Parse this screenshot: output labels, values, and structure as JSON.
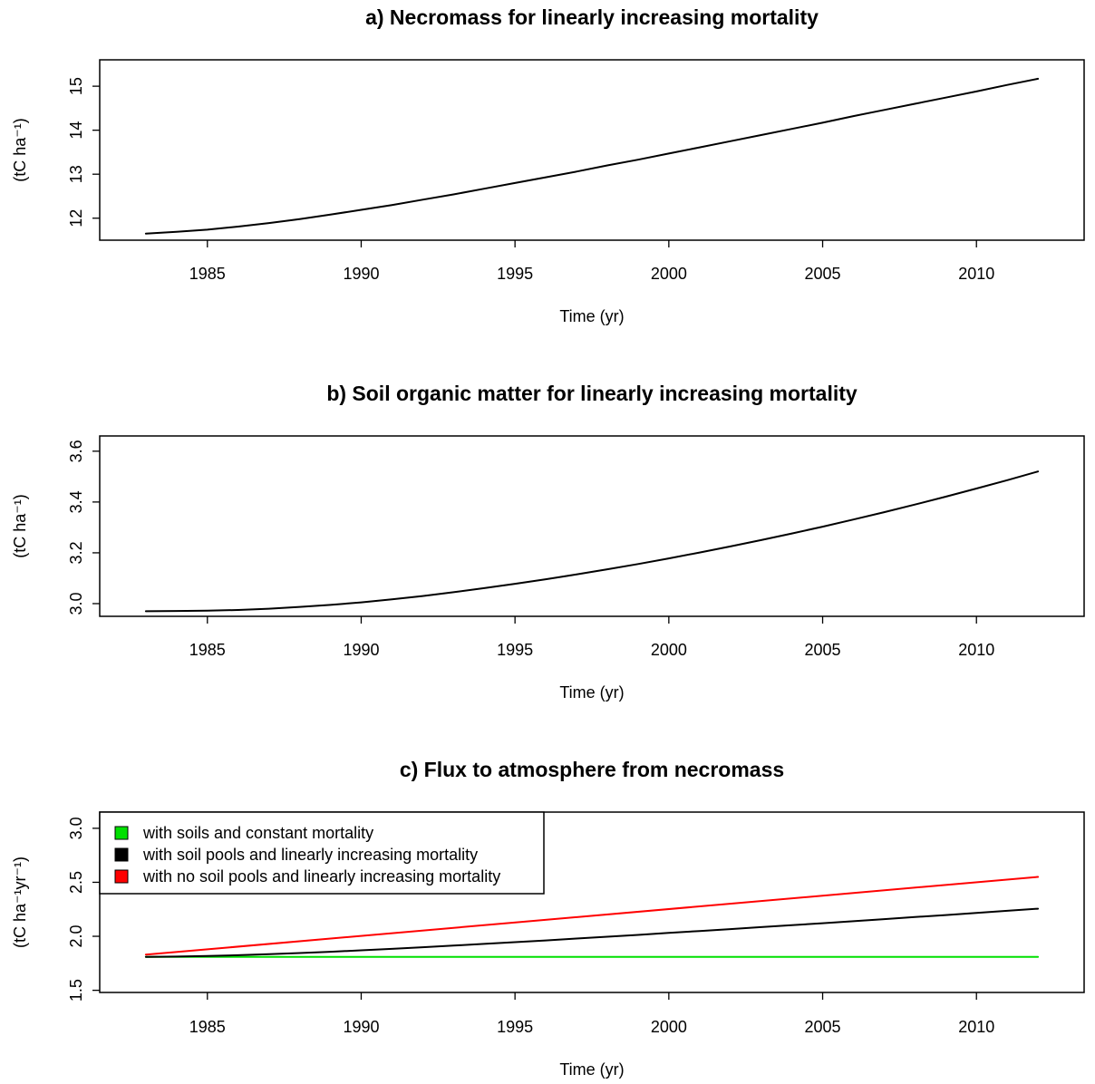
{
  "chart_data": [
    {
      "type": "line",
      "title": "a) Necromass for linearly increasing mortality",
      "xlabel": "Time (yr)",
      "ylabel": "(tC ha⁻¹)",
      "xlim": [
        1981.5,
        2013.5
      ],
      "ylim": [
        11.5,
        15.6
      ],
      "x_ticks": [
        1985,
        1990,
        1995,
        2000,
        2005,
        2010
      ],
      "x_tick_labels": [
        "1985",
        "1990",
        "1995",
        "2000",
        "2005",
        "2010"
      ],
      "y_ticks": [
        12,
        13,
        14,
        15
      ],
      "y_tick_labels": [
        "12",
        "13",
        "14",
        "15"
      ],
      "grid": false,
      "series": [
        {
          "color": "#000000",
          "x": [
            1983,
            1984,
            1985,
            1986,
            1987,
            1988,
            1989,
            1990,
            1991,
            1992,
            1993,
            1994,
            1995,
            1996,
            1997,
            1998,
            1999,
            2000,
            2001,
            2002,
            2003,
            2004,
            2005,
            2006,
            2007,
            2008,
            2009,
            2010,
            2011,
            2012
          ],
          "values": [
            11.65,
            11.69,
            11.74,
            11.81,
            11.89,
            11.98,
            12.08,
            12.19,
            12.3,
            12.42,
            12.54,
            12.67,
            12.8,
            12.93,
            13.06,
            13.2,
            13.33,
            13.47,
            13.61,
            13.75,
            13.89,
            14.03,
            14.17,
            14.32,
            14.46,
            14.6,
            14.74,
            14.88,
            15.03,
            15.17
          ]
        }
      ]
    },
    {
      "type": "line",
      "title": "b) Soil organic matter for linearly increasing mortality",
      "xlabel": "Time (yr)",
      "ylabel": "(tC ha⁻¹)",
      "xlim": [
        1981.5,
        2013.5
      ],
      "ylim": [
        2.95,
        3.66
      ],
      "x_ticks": [
        1985,
        1990,
        1995,
        2000,
        2005,
        2010
      ],
      "x_tick_labels": [
        "1985",
        "1990",
        "1995",
        "2000",
        "2005",
        "2010"
      ],
      "y_ticks": [
        3.0,
        3.2,
        3.4,
        3.6
      ],
      "y_tick_labels": [
        "3.0",
        "3.2",
        "3.4",
        "3.6"
      ],
      "grid": false,
      "series": [
        {
          "color": "#000000",
          "x": [
            1983,
            1984,
            1985,
            1986,
            1987,
            1988,
            1989,
            1990,
            1991,
            1992,
            1993,
            1994,
            1995,
            1996,
            1997,
            1998,
            1999,
            2000,
            2001,
            2002,
            2003,
            2004,
            2005,
            2006,
            2007,
            2008,
            2009,
            2010,
            2011,
            2012
          ],
          "values": [
            2.97,
            2.971,
            2.972,
            2.975,
            2.98,
            2.987,
            2.995,
            3.005,
            3.017,
            3.03,
            3.045,
            3.061,
            3.078,
            3.096,
            3.115,
            3.135,
            3.156,
            3.178,
            3.201,
            3.225,
            3.25,
            3.276,
            3.303,
            3.331,
            3.36,
            3.39,
            3.421,
            3.453,
            3.486,
            3.52
          ]
        }
      ]
    },
    {
      "type": "line",
      "title": "c) Flux to atmosphere from necromass",
      "xlabel": "Time (yr)",
      "ylabel": "(tC ha⁻¹yr⁻¹)",
      "xlim": [
        1981.5,
        2013.5
      ],
      "ylim": [
        1.48,
        3.15
      ],
      "x_ticks": [
        1985,
        1990,
        1995,
        2000,
        2005,
        2010
      ],
      "x_tick_labels": [
        "1985",
        "1990",
        "1995",
        "2000",
        "2005",
        "2010"
      ],
      "y_ticks": [
        1.5,
        2.0,
        2.5,
        3.0
      ],
      "y_tick_labels": [
        "1.5",
        "2.0",
        "2.5",
        "3.0"
      ],
      "grid": false,
      "legend_position": "top-left",
      "series": [
        {
          "name": "with soils and constant mortality",
          "color": "#00e000",
          "x": [
            1983,
            2012
          ],
          "values": [
            1.81,
            1.81
          ]
        },
        {
          "name": "with soil pools and linearly increasing mortality",
          "color": "#000000",
          "x": [
            1983,
            1984,
            1985,
            1986,
            1987,
            1988,
            1989,
            1990,
            1991,
            1992,
            1993,
            1994,
            1995,
            1996,
            1997,
            1998,
            1999,
            2000,
            2001,
            2002,
            2003,
            2004,
            2005,
            2006,
            2007,
            2008,
            2009,
            2010,
            2011,
            2012
          ],
          "values": [
            1.81,
            1.812,
            1.817,
            1.825,
            1.834,
            1.845,
            1.857,
            1.87,
            1.884,
            1.899,
            1.914,
            1.93,
            1.946,
            1.962,
            1.979,
            1.996,
            2.013,
            2.031,
            2.049,
            2.067,
            2.085,
            2.103,
            2.121,
            2.14,
            2.159,
            2.178,
            2.197,
            2.216,
            2.236,
            2.255
          ]
        },
        {
          "name": "with no soil pools and linearly increasing mortality",
          "color": "#ff0000",
          "x": [
            1983,
            2012
          ],
          "values": [
            1.83,
            2.55
          ]
        }
      ]
    }
  ]
}
